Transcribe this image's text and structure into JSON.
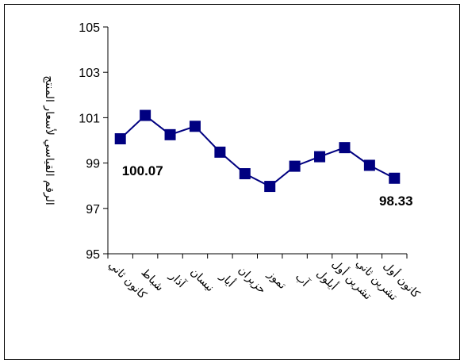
{
  "chart_data": {
    "type": "line",
    "ylabel": "الرقم القياسي لأسعار المنتج",
    "ylim": [
      95,
      105
    ],
    "yticks": [
      95,
      97,
      99,
      101,
      103,
      105
    ],
    "categories": [
      "كانون ثاني",
      "شباط",
      "آذار",
      "نيسان",
      "أيار",
      "حزيران",
      "تموز",
      "آب",
      "أيلول",
      "تشرين أول",
      "تشرين ثاني",
      "كانون أول"
    ],
    "series": [
      {
        "values": [
          100.07,
          101.1,
          100.25,
          100.62,
          99.48,
          98.53,
          97.97,
          98.86,
          99.28,
          99.68,
          98.9,
          98.33
        ]
      }
    ],
    "data_labels": [
      {
        "index": 0,
        "text": "100.07"
      },
      {
        "index": 11,
        "text": "98.33"
      }
    ],
    "grid": false,
    "legend": "none",
    "line_color": "#000080",
    "marker_color": "#000080"
  }
}
